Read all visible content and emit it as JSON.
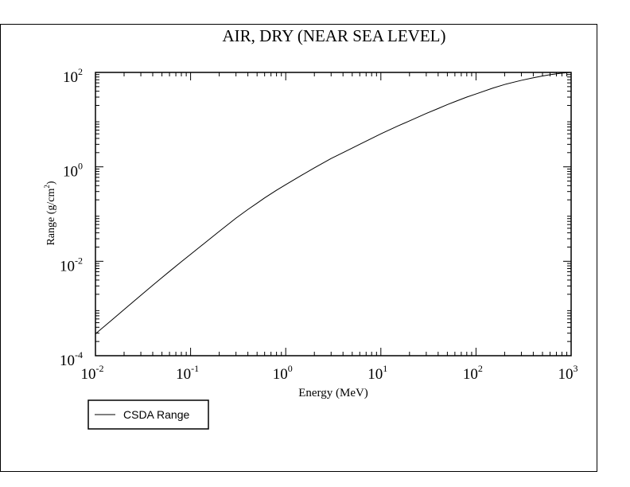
{
  "chart_data": {
    "type": "line",
    "title": "AIR, DRY (NEAR SEA LEVEL)",
    "xlabel": "Energy (MeV)",
    "ylabel": "Range (g/cm²)",
    "ylabel_base": "Range (g/cm",
    "ylabel_sup": "2",
    "ylabel_close": ")",
    "x_scale": "log",
    "y_scale": "log",
    "xlim": [
      0.01,
      1000
    ],
    "ylim": [
      0.0001,
      100
    ],
    "x_ticks": [
      {
        "base": "10",
        "exp": "-2",
        "value": 0.01
      },
      {
        "base": "10",
        "exp": "-1",
        "value": 0.1
      },
      {
        "base": "10",
        "exp": "0",
        "value": 1
      },
      {
        "base": "10",
        "exp": "1",
        "value": 10
      },
      {
        "base": "10",
        "exp": "2",
        "value": 100
      },
      {
        "base": "10",
        "exp": "3",
        "value": 1000
      }
    ],
    "y_ticks": [
      {
        "base": "10",
        "exp": "-4",
        "value": 0.0001
      },
      {
        "base": "10",
        "exp": "-2",
        "value": 0.01
      },
      {
        "base": "10",
        "exp": "0",
        "value": 1
      },
      {
        "base": "10",
        "exp": "2",
        "value": 100
      }
    ],
    "grid": false,
    "legend_position": "bottom-left",
    "series": [
      {
        "name": "CSDA Range",
        "color": "#000000",
        "x": [
          0.01,
          0.015,
          0.02,
          0.03,
          0.04,
          0.05,
          0.06,
          0.08,
          0.1,
          0.15,
          0.2,
          0.3,
          0.4,
          0.5,
          0.6,
          0.8,
          1,
          1.5,
          2,
          3,
          4,
          5,
          6,
          8,
          10,
          15,
          20,
          30,
          40,
          50,
          60,
          80,
          100,
          150,
          200,
          300,
          400,
          500,
          600,
          800,
          1000
        ],
        "y": [
          0.00029,
          0.00058,
          0.00095,
          0.0019,
          0.0031,
          0.0045,
          0.0061,
          0.0098,
          0.014,
          0.027,
          0.043,
          0.082,
          0.125,
          0.17,
          0.22,
          0.32,
          0.42,
          0.68,
          0.95,
          1.5,
          2.0,
          2.5,
          3.0,
          4.0,
          5.0,
          7.3,
          9.4,
          13.5,
          17.2,
          20.8,
          24.0,
          30.0,
          35.0,
          46.5,
          55.5,
          68.0,
          77.0,
          84.0,
          89.5,
          96.5,
          100.0
        ]
      }
    ]
  },
  "legend": {
    "label": "CSDA Range"
  }
}
